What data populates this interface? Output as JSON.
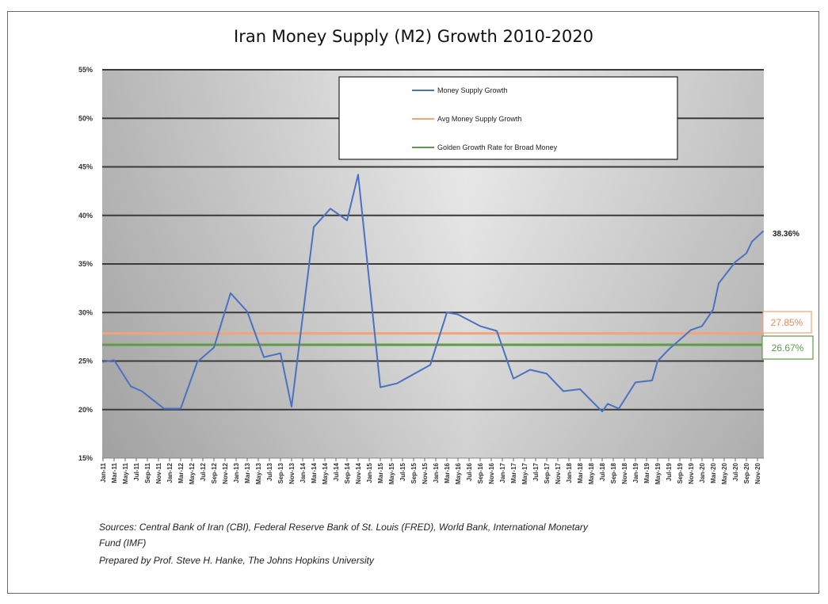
{
  "chart_data": {
    "type": "line",
    "title": "Iran Money Supply (M2) Growth 2010-2020",
    "ylim": [
      15,
      55
    ],
    "yticks": [
      "15%",
      "20%",
      "25%",
      "30%",
      "35%",
      "40%",
      "45%",
      "50%",
      "55%"
    ],
    "xticks": [
      "Jan-11",
      "Mar-11",
      "May-11",
      "Jul-11",
      "Sep-11",
      "Nov-11",
      "Jan-12",
      "Mar-12",
      "May-12",
      "Jul-12",
      "Sep-12",
      "Nov-12",
      "Jan-13",
      "Mar-13",
      "May-13",
      "Jul-13",
      "Sep-13",
      "Nov-13",
      "Jan-14",
      "Mar-14",
      "May-14",
      "Jul-14",
      "Sep-14",
      "Nov-14",
      "Jan-15",
      "Mar-15",
      "May-15",
      "Jul-15",
      "Sep-15",
      "Nov-15",
      "Jan-16",
      "Mar-16",
      "May-16",
      "Jul-16",
      "Sep-16",
      "Nov-16",
      "Jan-17",
      "Mar-17",
      "May-17",
      "Jul-17",
      "Sep-17",
      "Nov-17",
      "Jan-18",
      "Mar-18",
      "May-18",
      "Jul-18",
      "Sep-18",
      "Nov-18",
      "Jan-19",
      "Mar-19",
      "May-19",
      "Jul-19",
      "Sep-19",
      "Nov-19",
      "Jan-20",
      "Mar-20",
      "May-20",
      "Jul-20",
      "Sep-20",
      "Nov-20"
    ],
    "grid": true,
    "legend_placement": "top-center",
    "series": [
      {
        "name": "Money Supply Growth",
        "color": "#4a72c0",
        "points": [
          [
            "Jan-11",
            24.9
          ],
          [
            "Mar-11",
            25.1
          ],
          [
            "Jun-11",
            22.4
          ],
          [
            "Aug-11",
            21.9
          ],
          [
            "Dec-11",
            20.1
          ],
          [
            "Mar-12",
            20.1
          ],
          [
            "Jun-12",
            24.9
          ],
          [
            "Sep-12",
            26.4
          ],
          [
            "Dec-12",
            32.0
          ],
          [
            "Mar-13",
            30.1
          ],
          [
            "Jun-13",
            25.4
          ],
          [
            "Sep-13",
            25.8
          ],
          [
            "Nov-13",
            20.3
          ],
          [
            "Mar-14",
            38.8
          ],
          [
            "Jun-14",
            40.7
          ],
          [
            "Sep-14",
            39.5
          ],
          [
            "Nov-14",
            44.2
          ],
          [
            "Mar-15",
            22.3
          ],
          [
            "Jun-15",
            22.7
          ],
          [
            "Dec-15",
            24.6
          ],
          [
            "Mar-16",
            30.0
          ],
          [
            "May-16",
            29.8
          ],
          [
            "Sep-16",
            28.6
          ],
          [
            "Dec-16",
            28.1
          ],
          [
            "Mar-17",
            23.2
          ],
          [
            "Jun-17",
            24.1
          ],
          [
            "Sep-17",
            23.7
          ],
          [
            "Dec-17",
            21.9
          ],
          [
            "Mar-18",
            22.1
          ],
          [
            "Jul-18",
            19.8
          ],
          [
            "Aug-18",
            20.6
          ],
          [
            "Oct-18",
            20.1
          ],
          [
            "Jan-19",
            22.8
          ],
          [
            "Apr-19",
            23.0
          ],
          [
            "May-19",
            25.0
          ],
          [
            "Jul-19",
            26.2
          ],
          [
            "Sep-19",
            27.2
          ],
          [
            "Nov-19",
            28.2
          ],
          [
            "Jan-20",
            28.6
          ],
          [
            "Mar-20",
            30.3
          ],
          [
            "Apr-20",
            33.0
          ],
          [
            "Jul-20",
            35.2
          ],
          [
            "Sep-20",
            36.1
          ],
          [
            "Oct-20",
            37.3
          ],
          [
            "Dec-20",
            38.36
          ]
        ]
      },
      {
        "name": "Avg Money Supply Growth",
        "color": "#f0a478",
        "value": 27.85
      },
      {
        "name": "Golden Growth Rate for Broad Money",
        "color": "#5f9a4a",
        "value": 26.67
      }
    ],
    "annotations": {
      "last": "38.36%",
      "avg": "27.85%",
      "golden": "26.67%"
    }
  },
  "footer": {
    "sources_line1": "Sources: Central Bank of Iran (CBI), Federal Reserve Bank of St. Louis (FRED), World Bank, International Monetary",
    "sources_line2": "Fund (IMF)",
    "prepared_by": "Prepared by Prof. Steve H. Hanke, The Johns Hopkins University"
  }
}
